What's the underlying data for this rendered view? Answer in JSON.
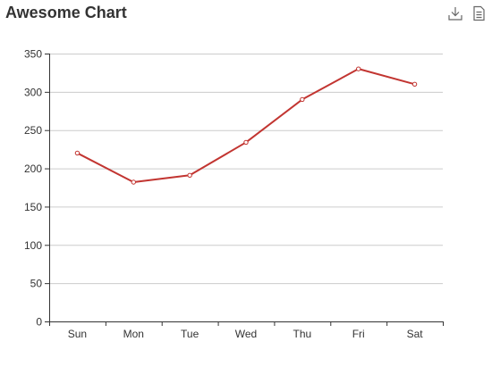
{
  "title": "Awesome Chart",
  "toolbox": {
    "items": [
      {
        "name": "download-icon"
      },
      {
        "name": "data-view-icon"
      }
    ]
  },
  "colors": {
    "line": "#c23531",
    "grid": "#cccccc",
    "axis": "#333333",
    "text": "#333333"
  },
  "chart_data": {
    "type": "line",
    "title": "Awesome Chart",
    "xlabel": "",
    "ylabel": "",
    "categories": [
      "Sun",
      "Mon",
      "Tue",
      "Wed",
      "Thu",
      "Fri",
      "Sat"
    ],
    "series": [
      {
        "values": [
          220,
          182,
          191,
          234,
          290,
          330,
          310
        ]
      }
    ],
    "ylim": [
      0,
      350
    ],
    "yticks": [
      0,
      50,
      100,
      150,
      200,
      250,
      300,
      350
    ],
    "grid": true,
    "legend": "none"
  }
}
